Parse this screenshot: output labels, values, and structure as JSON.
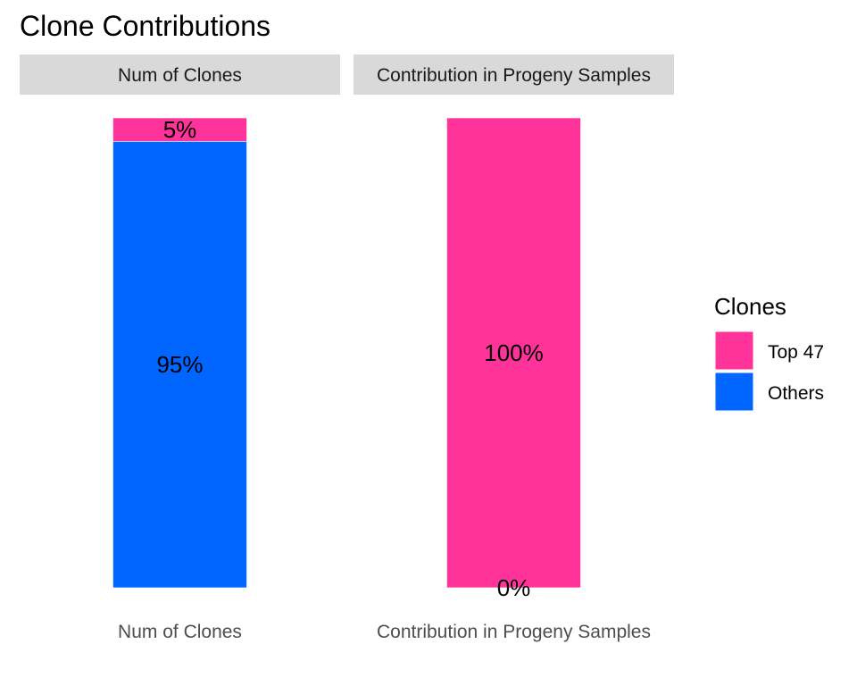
{
  "chart_data": {
    "type": "bar",
    "stacked": true,
    "title": "Clone Contributions",
    "facets": [
      "Num of Clones",
      "Contribution in Progeny Samples"
    ],
    "categories": [
      "Num of Clones",
      "Contribution in Progeny Samples"
    ],
    "ylim": [
      0,
      100
    ],
    "series": [
      {
        "name": "Top 47",
        "color": "#ff3399",
        "values": [
          5,
          100
        ],
        "labels": [
          "5%",
          "100%"
        ]
      },
      {
        "name": "Others",
        "color": "#0066ff",
        "values": [
          95,
          0
        ],
        "labels": [
          "95%",
          "0%"
        ]
      }
    ],
    "legend": {
      "title": "Clones",
      "position": "right",
      "items": [
        {
          "label": "Top 47",
          "color": "#ff3399"
        },
        {
          "label": "Others",
          "color": "#0066ff"
        }
      ]
    },
    "grid": false,
    "colors": {
      "strip_background": "#d9d9d9",
      "background": "#ffffff"
    }
  }
}
